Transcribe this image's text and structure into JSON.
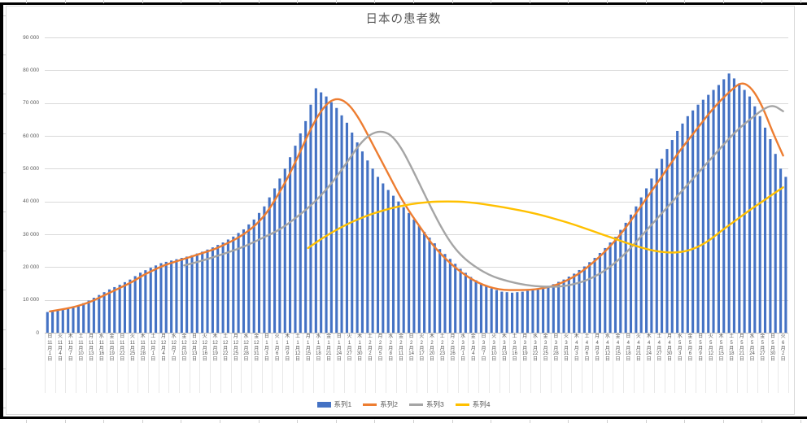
{
  "chart_data": {
    "type": "combo",
    "title": "日本の患者数",
    "legend_position": "bottom",
    "grid": "horizontal",
    "ylim": [
      0,
      90000
    ],
    "y_tick_step": 10000,
    "y_tick_labels": [
      "0",
      "10 000",
      "20 000",
      "30 000",
      "40 000",
      "50 000",
      "60 000",
      "70 000",
      "80 000",
      "90 000"
    ],
    "x_dow": [
      "日",
      "火",
      "木",
      "土",
      "月",
      "水",
      "金",
      "日",
      "火",
      "木",
      "土",
      "月",
      "水",
      "金",
      "日",
      "火",
      "木",
      "土",
      "月",
      "水",
      "金",
      "日",
      "火",
      "木",
      "土",
      "月",
      "水",
      "金",
      "日",
      "火",
      "木",
      "土",
      "月",
      "水",
      "金",
      "日",
      "火",
      "木",
      "土",
      "月",
      "水",
      "金",
      "日",
      "火",
      "木",
      "土",
      "月",
      "水",
      "金",
      "日",
      "火",
      "木",
      "土",
      "月",
      "水",
      "金",
      "日",
      "火",
      "木",
      "土",
      "月",
      "水",
      "金",
      "日",
      "火",
      "木",
      "土",
      "月",
      "水",
      "金",
      "日",
      "火"
    ],
    "x_dates": [
      "11月1日",
      "11月4日",
      "11月7日",
      "11月10日",
      "11月13日",
      "11月16日",
      "11月19日",
      "11月22日",
      "11月25日",
      "11月28日",
      "12月1日",
      "12月4日",
      "12月7日",
      "12月10日",
      "12月13日",
      "12月16日",
      "12月19日",
      "12月22日",
      "12月25日",
      "12月28日",
      "12月31日",
      "1月3日",
      "1月6日",
      "1月9日",
      "1月12日",
      "1月15日",
      "1月18日",
      "1月21日",
      "1月24日",
      "1月27日",
      "1月30日",
      "2月2日",
      "2月5日",
      "2月8日",
      "2月11日",
      "2月14日",
      "2月17日",
      "2月20日",
      "2月23日",
      "2月26日",
      "3月1日",
      "3月4日",
      "3月7日",
      "3月10日",
      "3月13日",
      "3月16日",
      "3月19日",
      "3月22日",
      "3月25日",
      "3月28日",
      "3月31日",
      "4月3日",
      "4月6日",
      "4月9日",
      "4月12日",
      "4月15日",
      "4月18日",
      "4月21日",
      "4月24日",
      "4月27日",
      "4月30日",
      "5月3日",
      "5月6日",
      "5月9日",
      "5月12日",
      "5月15日",
      "5月18日",
      "5月21日",
      "5月24日",
      "5月27日",
      "5月30日",
      "6月2日"
    ],
    "series": [
      {
        "name": "系列1",
        "type": "bar",
        "color": "#4472C4",
        "values": [
          6300,
          6800,
          7300,
          8200,
          9800,
          11500,
          13200,
          14600,
          16200,
          18300,
          19800,
          21200,
          22000,
          22800,
          23600,
          24700,
          26000,
          27500,
          29300,
          31500,
          34500,
          38500,
          44000,
          50000,
          57000,
          64500,
          74500,
          72000,
          68500,
          64000,
          58000,
          52500,
          47500,
          43500,
          40000,
          36500,
          32500,
          29000,
          25500,
          22500,
          19500,
          17000,
          15000,
          13500,
          12500,
          12200,
          12500,
          13000,
          13800,
          14800,
          16200,
          18000,
          20200,
          22800,
          25800,
          29200,
          33500,
          38500,
          44000,
          50000,
          56000,
          61500,
          66000,
          69500,
          72500,
          75500,
          79000,
          76000,
          72000,
          66000,
          59000,
          50000
        ]
      },
      {
        "name": "系列2",
        "type": "line",
        "color": "#ED7D31",
        "values": [
          6500,
          7000,
          7600,
          8400,
          9500,
          11000,
          12500,
          14000,
          15500,
          17500,
          19000,
          20500,
          21500,
          22500,
          23500,
          24500,
          25500,
          27000,
          28500,
          30500,
          33000,
          36500,
          41500,
          47000,
          53500,
          60500,
          66500,
          70500,
          71500,
          69500,
          65000,
          59000,
          53000,
          47000,
          41000,
          36000,
          31500,
          27000,
          23500,
          20500,
          18000,
          16000,
          14500,
          13500,
          13000,
          13000,
          13000,
          13200,
          13700,
          14500,
          15800,
          17500,
          19800,
          22500,
          25500,
          29000,
          33000,
          37500,
          42000,
          46500,
          51000,
          55500,
          59500,
          63500,
          67500,
          71000,
          74000,
          76500,
          74500,
          69000,
          61000,
          54000
        ]
      },
      {
        "name": "系列3",
        "type": "line",
        "color": "#A5A5A5",
        "values": [
          null,
          null,
          null,
          null,
          null,
          null,
          null,
          null,
          null,
          null,
          null,
          null,
          null,
          20500,
          21300,
          22200,
          23200,
          24200,
          25300,
          26500,
          28000,
          29500,
          31000,
          33000,
          35500,
          38000,
          41000,
          44500,
          48500,
          53000,
          57500,
          60500,
          61500,
          60500,
          56500,
          50500,
          44000,
          37500,
          31500,
          26500,
          23000,
          20500,
          18500,
          17000,
          16000,
          15200,
          14600,
          14200,
          14000,
          14000,
          14300,
          15000,
          16000,
          17500,
          19500,
          22000,
          25000,
          28500,
          32000,
          35500,
          39000,
          42500,
          46000,
          49500,
          53000,
          56500,
          60000,
          63000,
          65500,
          68000,
          69500,
          67500
        ]
      },
      {
        "name": "系列4",
        "type": "line",
        "color": "#FFC000",
        "values": [
          null,
          null,
          null,
          null,
          null,
          null,
          null,
          null,
          null,
          null,
          null,
          null,
          null,
          null,
          null,
          null,
          null,
          null,
          null,
          null,
          null,
          null,
          null,
          null,
          null,
          25800,
          28000,
          30000,
          31800,
          33400,
          34800,
          36000,
          37000,
          37900,
          38600,
          39200,
          39600,
          39900,
          40000,
          40000,
          39900,
          39600,
          39200,
          38700,
          38200,
          37600,
          37000,
          36300,
          35500,
          34600,
          33700,
          32700,
          31600,
          30500,
          29400,
          28300,
          27200,
          26200,
          25300,
          24700,
          24400,
          24500,
          25200,
          26500,
          28500,
          31000,
          33300,
          35600,
          37900,
          40000,
          42200,
          44300
        ]
      }
    ]
  },
  "colors": {
    "grid": "#D9D9D9",
    "axis": "#BFBFBF",
    "text": "#595959",
    "sheet_border": "#000000"
  }
}
